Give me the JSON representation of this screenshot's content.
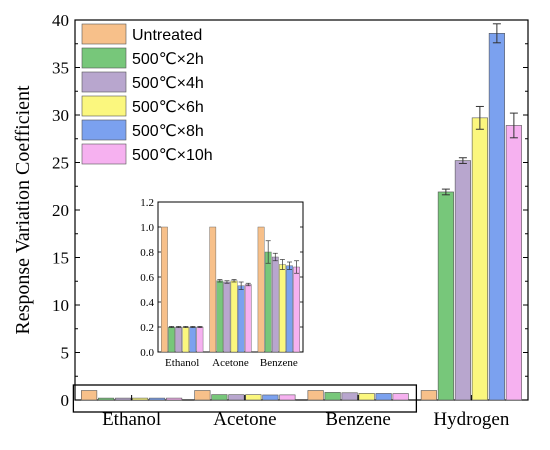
{
  "chart_data": [
    {
      "type": "bar",
      "title": "",
      "xlabel": "",
      "ylabel": "Response Variation Coefficient",
      "ylim": [
        0,
        40
      ],
      "yticks": [
        0,
        5,
        10,
        15,
        20,
        25,
        30,
        35,
        40
      ],
      "categories": [
        "Ethanol",
        "Acetone",
        "Benzene",
        "Hydrogen"
      ],
      "legend_position": "top-left",
      "series": [
        {
          "name": "Untreated",
          "color": "#F7C08A",
          "values": [
            1.0,
            1.0,
            1.0,
            1.0
          ],
          "errors": [
            0,
            0,
            0,
            0
          ]
        },
        {
          "name": "500℃×2h",
          "color": "#77C77A",
          "values": [
            0.2,
            0.57,
            0.8,
            21.9
          ],
          "errors": [
            0,
            0,
            0,
            0.3
          ]
        },
        {
          "name": "500℃×4h",
          "color": "#B8A6CE",
          "values": [
            0.2,
            0.56,
            0.76,
            25.2
          ],
          "errors": [
            0,
            0,
            0,
            0.3
          ]
        },
        {
          "name": "500℃×6h",
          "color": "#FBF77E",
          "values": [
            0.2,
            0.57,
            0.7,
            29.7
          ],
          "errors": [
            0,
            0,
            0,
            1.2
          ]
        },
        {
          "name": "500℃×8h",
          "color": "#7BA1EF",
          "values": [
            0.2,
            0.53,
            0.69,
            38.6
          ],
          "errors": [
            0,
            0,
            0,
            1.0
          ]
        },
        {
          "name": "500℃×10h",
          "color": "#F6B1F0",
          "values": [
            0.2,
            0.54,
            0.68,
            28.9
          ],
          "errors": [
            0,
            0,
            0,
            1.3
          ]
        }
      ]
    },
    {
      "type": "bar",
      "title": "",
      "xlabel": "",
      "ylabel": "",
      "ylim": [
        0,
        1.2
      ],
      "yticks": [
        0.0,
        0.2,
        0.4,
        0.6,
        0.8,
        1.0,
        1.2
      ],
      "categories": [
        "Ethanol",
        "Acetone",
        "Benzene"
      ],
      "series": [
        {
          "name": "Untreated",
          "color": "#F7C08A",
          "values": [
            1.0,
            1.0,
            1.0
          ],
          "errors": [
            0,
            0,
            0
          ]
        },
        {
          "name": "500℃×2h",
          "color": "#77C77A",
          "values": [
            0.2,
            0.57,
            0.8
          ],
          "errors": [
            0.005,
            0.01,
            0.09
          ]
        },
        {
          "name": "500℃×4h",
          "color": "#B8A6CE",
          "values": [
            0.2,
            0.56,
            0.76
          ],
          "errors": [
            0.005,
            0.01,
            0.03
          ]
        },
        {
          "name": "500℃×6h",
          "color": "#FBF77E",
          "values": [
            0.2,
            0.57,
            0.7
          ],
          "errors": [
            0.005,
            0.01,
            0.04
          ]
        },
        {
          "name": "500℃×8h",
          "color": "#7BA1EF",
          "values": [
            0.2,
            0.53,
            0.69
          ],
          "errors": [
            0.005,
            0.03,
            0.03
          ]
        },
        {
          "name": "500℃×10h",
          "color": "#F6B1F0",
          "values": [
            0.2,
            0.54,
            0.68
          ],
          "errors": [
            0.005,
            0.01,
            0.05
          ]
        }
      ]
    }
  ]
}
